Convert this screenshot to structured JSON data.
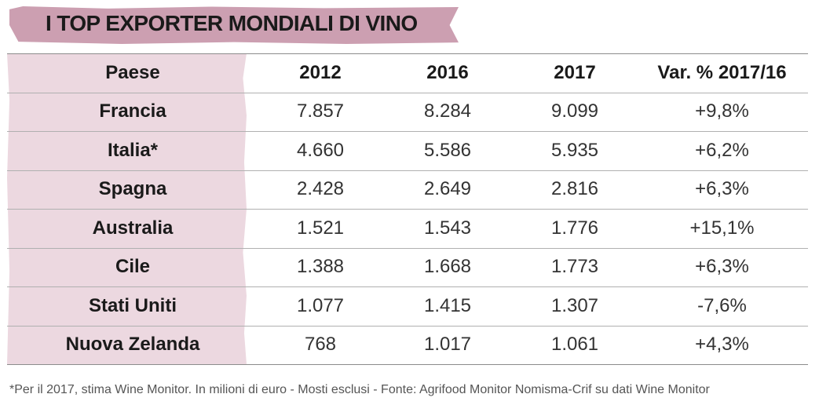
{
  "title": "I TOP EXPORTER MONDIALI DI VINO",
  "chart_data": {
    "type": "table",
    "columns": [
      "Paese",
      "2012",
      "2016",
      "2017",
      "Var. % 2017/16"
    ],
    "rows": [
      [
        "Francia",
        "7.857",
        "8.284",
        "9.099",
        "+9,8%"
      ],
      [
        "Italia*",
        "4.660",
        "5.586",
        "5.935",
        "+6,2%"
      ],
      [
        "Spagna",
        "2.428",
        "2.649",
        "2.816",
        "+6,3%"
      ],
      [
        "Australia",
        "1.521",
        "1.543",
        "1.776",
        "+15,1%"
      ],
      [
        "Cile",
        "1.388",
        "1.668",
        "1.773",
        "+6,3%"
      ],
      [
        "Stati Uniti",
        "1.077",
        "1.415",
        "1.307",
        "-7,6%"
      ],
      [
        "Nuova Zelanda",
        "768",
        "1.017",
        "1.061",
        "+4,3%"
      ]
    ]
  },
  "footnote": "*Per il 2017, stima Wine Monitor.  In milioni di euro - Mosti esclusi - Fonte: Agrifood Monitor Nomisma-Crif su dati Wine Monitor",
  "colors": {
    "title_band": "#cc9fb1",
    "column_band": "#ecd8e0",
    "rule": "#b0b0b0"
  }
}
